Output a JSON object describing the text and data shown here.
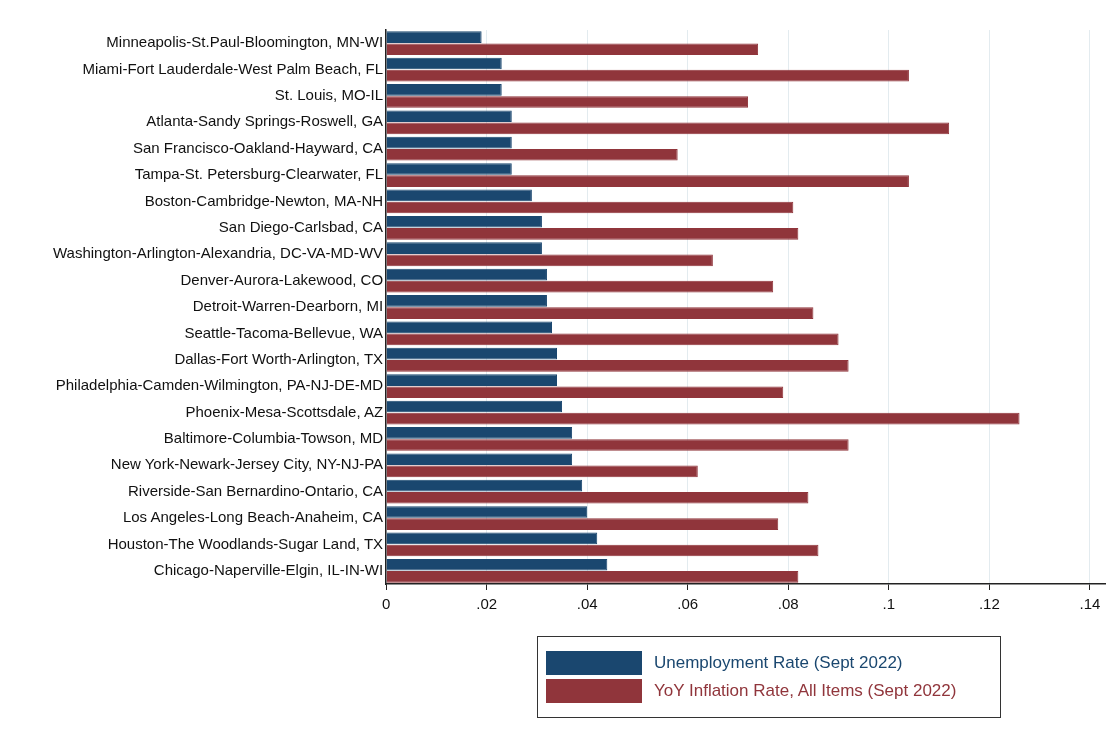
{
  "chart_data": {
    "type": "bar",
    "orientation": "horizontal",
    "categories": [
      "Minneapolis-St.Paul-Bloomington, MN-WI",
      "Miami-Fort Lauderdale-West Palm Beach, FL",
      "St. Louis, MO-IL",
      "Atlanta-Sandy Springs-Roswell, GA",
      "San Francisco-Oakland-Hayward, CA",
      "Tampa-St. Petersburg-Clearwater, FL",
      "Boston-Cambridge-Newton, MA-NH",
      "San Diego-Carlsbad, CA",
      "Washington-Arlington-Alexandria, DC-VA-MD-WV",
      "Denver-Aurora-Lakewood, CO",
      "Detroit-Warren-Dearborn, MI",
      "Seattle-Tacoma-Bellevue, WA",
      "Dallas-Fort Worth-Arlington, TX",
      "Philadelphia-Camden-Wilmington, PA-NJ-DE-MD",
      "Phoenix-Mesa-Scottsdale, AZ",
      "Baltimore-Columbia-Towson, MD",
      "New York-Newark-Jersey City, NY-NJ-PA",
      "Riverside-San Bernardino-Ontario, CA",
      "Los Angeles-Long Beach-Anaheim, CA",
      "Houston-The Woodlands-Sugar Land, TX",
      "Chicago-Naperville-Elgin, IL-IN-WI"
    ],
    "series": [
      {
        "name": "Unemployment Rate (Sept 2022)",
        "color": "#1a476f",
        "values": [
          0.019,
          0.023,
          0.023,
          0.025,
          0.025,
          0.025,
          0.029,
          0.031,
          0.031,
          0.032,
          0.032,
          0.033,
          0.034,
          0.034,
          0.035,
          0.037,
          0.037,
          0.039,
          0.04,
          0.042,
          0.044
        ]
      },
      {
        "name": "YoY Inflation Rate, All Items (Sept 2022)",
        "color": "#90353b",
        "values": [
          0.074,
          0.104,
          0.072,
          0.112,
          0.058,
          0.104,
          0.081,
          0.082,
          0.065,
          0.077,
          0.085,
          0.09,
          0.092,
          0.079,
          0.126,
          0.092,
          0.062,
          0.084,
          0.078,
          0.086,
          0.082
        ]
      }
    ],
    "xlim": [
      0,
      0.143
    ],
    "xticks": [
      0,
      {
        "value": 0.02,
        "label": ".02"
      },
      {
        "value": 0.04,
        "label": ".04"
      },
      {
        "value": 0.06,
        "label": ".06"
      },
      {
        "value": 0.08,
        "label": ".08"
      },
      {
        "value": 0.1,
        "label": ".1"
      },
      {
        "value": 0.12,
        "label": ".12"
      },
      {
        "value": 0.14,
        "label": ".14"
      }
    ],
    "grid": "x",
    "legend": "bottom"
  }
}
